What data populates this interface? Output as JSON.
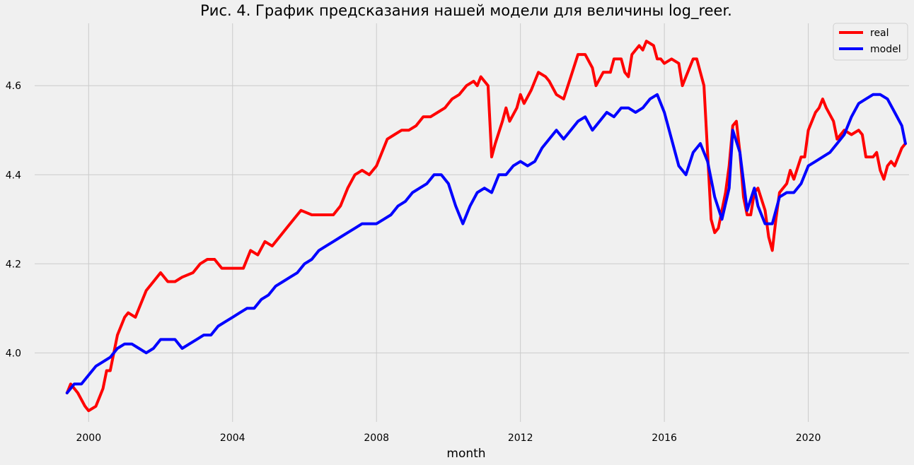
{
  "chart_data": {
    "type": "line",
    "title": "Рис. 4. График предсказания нашей модели для величины log_reer.",
    "xlabel": "month",
    "ylabel": "",
    "xlim": [
      1998.5,
      2022.8
    ],
    "ylim": [
      3.845,
      4.74
    ],
    "x_ticks": [
      2000,
      2004,
      2008,
      2012,
      2016,
      2020
    ],
    "x_tick_labels": [
      "2000",
      "2004",
      "2008",
      "2012",
      "2016",
      "2020"
    ],
    "y_ticks": [
      4.0,
      4.2,
      4.4,
      4.6
    ],
    "y_tick_labels": [
      "4.0",
      "4.2",
      "4.4",
      "4.6"
    ],
    "grid": true,
    "legend_position": "top-right",
    "series": [
      {
        "name": "real",
        "color": "#ff0000",
        "points": [
          [
            1999.4,
            3.91
          ],
          [
            1999.5,
            3.93
          ],
          [
            1999.7,
            3.91
          ],
          [
            1999.9,
            3.88
          ],
          [
            2000.0,
            3.87
          ],
          [
            2000.2,
            3.88
          ],
          [
            2000.3,
            3.9
          ],
          [
            2000.4,
            3.92
          ],
          [
            2000.5,
            3.96
          ],
          [
            2000.6,
            3.96
          ],
          [
            2000.7,
            4.0
          ],
          [
            2000.8,
            4.04
          ],
          [
            2001.0,
            4.08
          ],
          [
            2001.1,
            4.09
          ],
          [
            2001.3,
            4.08
          ],
          [
            2001.4,
            4.1
          ],
          [
            2001.6,
            4.14
          ],
          [
            2001.8,
            4.16
          ],
          [
            2002.0,
            4.18
          ],
          [
            2002.2,
            4.16
          ],
          [
            2002.4,
            4.16
          ],
          [
            2002.6,
            4.17
          ],
          [
            2002.9,
            4.18
          ],
          [
            2003.1,
            4.2
          ],
          [
            2003.3,
            4.21
          ],
          [
            2003.5,
            4.21
          ],
          [
            2003.7,
            4.19
          ],
          [
            2003.9,
            4.19
          ],
          [
            2004.1,
            4.19
          ],
          [
            2004.3,
            4.19
          ],
          [
            2004.5,
            4.23
          ],
          [
            2004.7,
            4.22
          ],
          [
            2004.9,
            4.25
          ],
          [
            2005.1,
            4.24
          ],
          [
            2005.3,
            4.26
          ],
          [
            2005.5,
            4.28
          ],
          [
            2005.7,
            4.3
          ],
          [
            2005.9,
            4.32
          ],
          [
            2006.2,
            4.31
          ],
          [
            2006.5,
            4.31
          ],
          [
            2006.8,
            4.31
          ],
          [
            2007.0,
            4.33
          ],
          [
            2007.2,
            4.37
          ],
          [
            2007.4,
            4.4
          ],
          [
            2007.6,
            4.41
          ],
          [
            2007.8,
            4.4
          ],
          [
            2008.0,
            4.42
          ],
          [
            2008.1,
            4.44
          ],
          [
            2008.3,
            4.48
          ],
          [
            2008.5,
            4.49
          ],
          [
            2008.7,
            4.5
          ],
          [
            2008.9,
            4.5
          ],
          [
            2009.1,
            4.51
          ],
          [
            2009.3,
            4.53
          ],
          [
            2009.5,
            4.53
          ],
          [
            2009.7,
            4.54
          ],
          [
            2009.9,
            4.55
          ],
          [
            2010.1,
            4.57
          ],
          [
            2010.3,
            4.58
          ],
          [
            2010.5,
            4.6
          ],
          [
            2010.7,
            4.61
          ],
          [
            2010.8,
            4.6
          ],
          [
            2010.9,
            4.62
          ],
          [
            2011.1,
            4.6
          ],
          [
            2011.2,
            4.44
          ],
          [
            2011.3,
            4.47
          ],
          [
            2011.5,
            4.52
          ],
          [
            2011.6,
            4.55
          ],
          [
            2011.7,
            4.52
          ],
          [
            2011.9,
            4.55
          ],
          [
            2012.0,
            4.58
          ],
          [
            2012.1,
            4.56
          ],
          [
            2012.3,
            4.59
          ],
          [
            2012.5,
            4.63
          ],
          [
            2012.7,
            4.62
          ],
          [
            2012.8,
            4.61
          ],
          [
            2013.0,
            4.58
          ],
          [
            2013.2,
            4.57
          ],
          [
            2013.4,
            4.62
          ],
          [
            2013.6,
            4.67
          ],
          [
            2013.8,
            4.67
          ],
          [
            2014.0,
            4.64
          ],
          [
            2014.1,
            4.6
          ],
          [
            2014.3,
            4.63
          ],
          [
            2014.5,
            4.63
          ],
          [
            2014.6,
            4.66
          ],
          [
            2014.8,
            4.66
          ],
          [
            2014.9,
            4.63
          ],
          [
            2015.0,
            4.62
          ],
          [
            2015.1,
            4.67
          ],
          [
            2015.3,
            4.69
          ],
          [
            2015.4,
            4.68
          ],
          [
            2015.5,
            4.7
          ],
          [
            2015.7,
            4.69
          ],
          [
            2015.8,
            4.66
          ],
          [
            2015.9,
            4.66
          ],
          [
            2016.0,
            4.65
          ],
          [
            2016.2,
            4.66
          ],
          [
            2016.4,
            4.65
          ],
          [
            2016.5,
            4.6
          ],
          [
            2016.6,
            4.62
          ],
          [
            2016.8,
            4.66
          ],
          [
            2016.9,
            4.66
          ],
          [
            2017.1,
            4.6
          ],
          [
            2017.2,
            4.45
          ],
          [
            2017.3,
            4.3
          ],
          [
            2017.4,
            4.27
          ],
          [
            2017.5,
            4.28
          ],
          [
            2017.7,
            4.36
          ],
          [
            2017.8,
            4.42
          ],
          [
            2017.9,
            4.51
          ],
          [
            2018.0,
            4.52
          ],
          [
            2018.1,
            4.45
          ],
          [
            2018.2,
            4.35
          ],
          [
            2018.3,
            4.31
          ],
          [
            2018.4,
            4.31
          ],
          [
            2018.5,
            4.36
          ],
          [
            2018.6,
            4.37
          ],
          [
            2018.8,
            4.32
          ],
          [
            2018.9,
            4.26
          ],
          [
            2019.0,
            4.23
          ],
          [
            2019.1,
            4.3
          ],
          [
            2019.2,
            4.36
          ],
          [
            2019.4,
            4.38
          ],
          [
            2019.5,
            4.41
          ],
          [
            2019.6,
            4.39
          ],
          [
            2019.8,
            4.44
          ],
          [
            2019.9,
            4.44
          ],
          [
            2020.0,
            4.5
          ],
          [
            2020.2,
            4.54
          ],
          [
            2020.3,
            4.55
          ],
          [
            2020.4,
            4.57
          ],
          [
            2020.5,
            4.55
          ],
          [
            2020.7,
            4.52
          ],
          [
            2020.8,
            4.48
          ],
          [
            2021.0,
            4.5
          ],
          [
            2021.2,
            4.49
          ],
          [
            2021.4,
            4.5
          ],
          [
            2021.5,
            4.49
          ],
          [
            2021.6,
            4.44
          ],
          [
            2021.8,
            4.44
          ],
          [
            2021.9,
            4.45
          ],
          [
            2022.0,
            4.41
          ],
          [
            2022.1,
            4.39
          ],
          [
            2022.2,
            4.42
          ],
          [
            2022.3,
            4.43
          ],
          [
            2022.4,
            4.42
          ],
          [
            2022.5,
            4.44
          ],
          [
            2022.6,
            4.46
          ],
          [
            2022.7,
            4.47
          ]
        ]
      },
      {
        "name": "model",
        "color": "#0000ff",
        "points": [
          [
            1999.4,
            3.91
          ],
          [
            1999.6,
            3.93
          ],
          [
            1999.8,
            3.93
          ],
          [
            2000.0,
            3.95
          ],
          [
            2000.2,
            3.97
          ],
          [
            2000.4,
            3.98
          ],
          [
            2000.6,
            3.99
          ],
          [
            2000.8,
            4.01
          ],
          [
            2001.0,
            4.02
          ],
          [
            2001.2,
            4.02
          ],
          [
            2001.4,
            4.01
          ],
          [
            2001.6,
            4.0
          ],
          [
            2001.8,
            4.01
          ],
          [
            2002.0,
            4.03
          ],
          [
            2002.2,
            4.03
          ],
          [
            2002.4,
            4.03
          ],
          [
            2002.6,
            4.01
          ],
          [
            2002.8,
            4.02
          ],
          [
            2003.0,
            4.03
          ],
          [
            2003.2,
            4.04
          ],
          [
            2003.4,
            4.04
          ],
          [
            2003.6,
            4.06
          ],
          [
            2003.8,
            4.07
          ],
          [
            2004.0,
            4.08
          ],
          [
            2004.2,
            4.09
          ],
          [
            2004.4,
            4.1
          ],
          [
            2004.6,
            4.1
          ],
          [
            2004.8,
            4.12
          ],
          [
            2005.0,
            4.13
          ],
          [
            2005.2,
            4.15
          ],
          [
            2005.4,
            4.16
          ],
          [
            2005.6,
            4.17
          ],
          [
            2005.8,
            4.18
          ],
          [
            2006.0,
            4.2
          ],
          [
            2006.2,
            4.21
          ],
          [
            2006.4,
            4.23
          ],
          [
            2006.6,
            4.24
          ],
          [
            2006.8,
            4.25
          ],
          [
            2007.0,
            4.26
          ],
          [
            2007.2,
            4.27
          ],
          [
            2007.4,
            4.28
          ],
          [
            2007.6,
            4.29
          ],
          [
            2007.8,
            4.29
          ],
          [
            2008.0,
            4.29
          ],
          [
            2008.2,
            4.3
          ],
          [
            2008.4,
            4.31
          ],
          [
            2008.6,
            4.33
          ],
          [
            2008.8,
            4.34
          ],
          [
            2009.0,
            4.36
          ],
          [
            2009.2,
            4.37
          ],
          [
            2009.4,
            4.38
          ],
          [
            2009.6,
            4.4
          ],
          [
            2009.8,
            4.4
          ],
          [
            2010.0,
            4.38
          ],
          [
            2010.2,
            4.33
          ],
          [
            2010.4,
            4.29
          ],
          [
            2010.6,
            4.33
          ],
          [
            2010.8,
            4.36
          ],
          [
            2011.0,
            4.37
          ],
          [
            2011.2,
            4.36
          ],
          [
            2011.4,
            4.4
          ],
          [
            2011.6,
            4.4
          ],
          [
            2011.8,
            4.42
          ],
          [
            2012.0,
            4.43
          ],
          [
            2012.2,
            4.42
          ],
          [
            2012.4,
            4.43
          ],
          [
            2012.6,
            4.46
          ],
          [
            2012.8,
            4.48
          ],
          [
            2013.0,
            4.5
          ],
          [
            2013.2,
            4.48
          ],
          [
            2013.4,
            4.5
          ],
          [
            2013.6,
            4.52
          ],
          [
            2013.8,
            4.53
          ],
          [
            2014.0,
            4.5
          ],
          [
            2014.2,
            4.52
          ],
          [
            2014.4,
            4.54
          ],
          [
            2014.6,
            4.53
          ],
          [
            2014.8,
            4.55
          ],
          [
            2015.0,
            4.55
          ],
          [
            2015.2,
            4.54
          ],
          [
            2015.4,
            4.55
          ],
          [
            2015.6,
            4.57
          ],
          [
            2015.8,
            4.58
          ],
          [
            2016.0,
            4.54
          ],
          [
            2016.2,
            4.48
          ],
          [
            2016.4,
            4.42
          ],
          [
            2016.6,
            4.4
          ],
          [
            2016.8,
            4.45
          ],
          [
            2017.0,
            4.47
          ],
          [
            2017.2,
            4.43
          ],
          [
            2017.4,
            4.35
          ],
          [
            2017.6,
            4.3
          ],
          [
            2017.8,
            4.37
          ],
          [
            2017.9,
            4.5
          ],
          [
            2018.1,
            4.45
          ],
          [
            2018.3,
            4.32
          ],
          [
            2018.5,
            4.37
          ],
          [
            2018.6,
            4.33
          ],
          [
            2018.8,
            4.29
          ],
          [
            2019.0,
            4.29
          ],
          [
            2019.2,
            4.35
          ],
          [
            2019.4,
            4.36
          ],
          [
            2019.6,
            4.36
          ],
          [
            2019.8,
            4.38
          ],
          [
            2020.0,
            4.42
          ],
          [
            2020.2,
            4.43
          ],
          [
            2020.4,
            4.44
          ],
          [
            2020.6,
            4.45
          ],
          [
            2020.8,
            4.47
          ],
          [
            2021.0,
            4.49
          ],
          [
            2021.2,
            4.53
          ],
          [
            2021.4,
            4.56
          ],
          [
            2021.6,
            4.57
          ],
          [
            2021.8,
            4.58
          ],
          [
            2022.0,
            4.58
          ],
          [
            2022.2,
            4.57
          ],
          [
            2022.4,
            4.54
          ],
          [
            2022.6,
            4.51
          ],
          [
            2022.7,
            4.47
          ]
        ]
      }
    ]
  }
}
